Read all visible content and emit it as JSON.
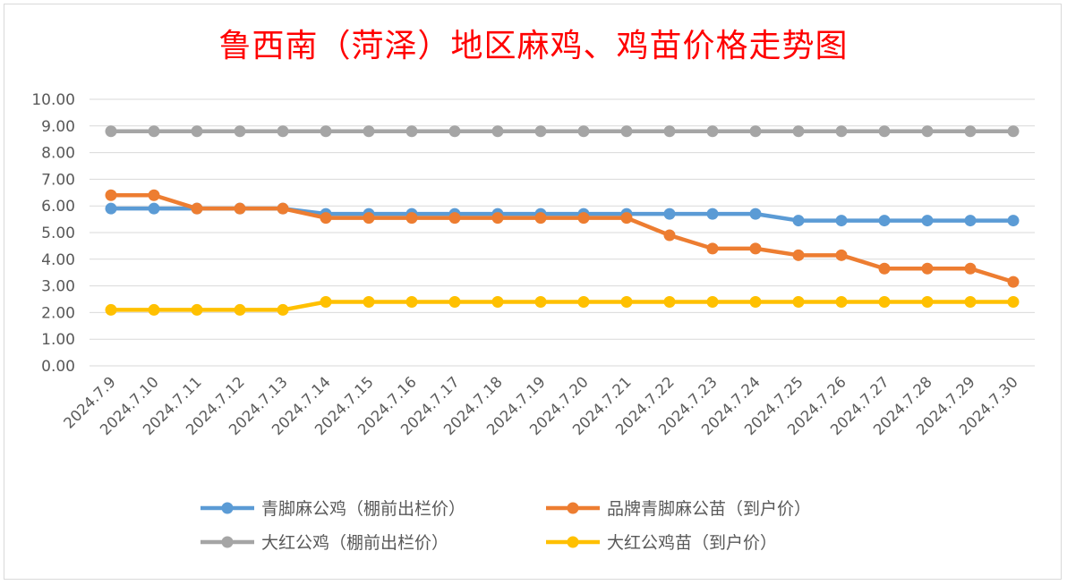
{
  "chart_data": {
    "type": "line",
    "title": "鲁西南（菏泽）地区麻鸡、鸡苗价格走势图",
    "categories": [
      "2024.7.9",
      "2024.7.10",
      "2024.7.11",
      "2024.7.12",
      "2024.7.13",
      "2024.7.14",
      "2024.7.15",
      "2024.7.16",
      "2024.7.17",
      "2024.7.18",
      "2024.7.19",
      "2024.7.20",
      "2024.7.21",
      "2024.7.22",
      "2024.7.23",
      "2024.7.24",
      "2024.7.25",
      "2024.7.26",
      "2024.7.27",
      "2024.7.28",
      "2024.7.29",
      "2024.7.30"
    ],
    "yticks": [
      "0.00",
      "1.00",
      "2.00",
      "3.00",
      "4.00",
      "5.00",
      "6.00",
      "7.00",
      "8.00",
      "9.00",
      "10.00"
    ],
    "ylim": [
      0,
      10
    ],
    "grid": true,
    "legend_position": "bottom",
    "series": [
      {
        "name": "青脚麻公鸡（棚前出栏价）",
        "color": "#5b9bd5",
        "values": [
          5.9,
          5.9,
          5.9,
          5.9,
          5.9,
          5.7,
          5.7,
          5.7,
          5.7,
          5.7,
          5.7,
          5.7,
          5.7,
          5.7,
          5.7,
          5.7,
          5.45,
          5.45,
          5.45,
          5.45,
          5.45,
          5.45
        ]
      },
      {
        "name": "品牌青脚麻公苗（到户价）",
        "color": "#ed7d31",
        "values": [
          6.4,
          6.4,
          5.9,
          5.9,
          5.9,
          5.55,
          5.55,
          5.55,
          5.55,
          5.55,
          5.55,
          5.55,
          5.55,
          4.9,
          4.4,
          4.4,
          4.15,
          4.15,
          3.65,
          3.65,
          3.65,
          3.15
        ]
      },
      {
        "name": "大红公鸡（棚前出栏价）",
        "color": "#a5a5a5",
        "values": [
          8.8,
          8.8,
          8.8,
          8.8,
          8.8,
          8.8,
          8.8,
          8.8,
          8.8,
          8.8,
          8.8,
          8.8,
          8.8,
          8.8,
          8.8,
          8.8,
          8.8,
          8.8,
          8.8,
          8.8,
          8.8,
          8.8
        ]
      },
      {
        "name": "大红公鸡苗（到户价）",
        "color": "#ffc000",
        "values": [
          2.1,
          2.1,
          2.1,
          2.1,
          2.1,
          2.4,
          2.4,
          2.4,
          2.4,
          2.4,
          2.4,
          2.4,
          2.4,
          2.4,
          2.4,
          2.4,
          2.4,
          2.4,
          2.4,
          2.4,
          2.4,
          2.4
        ]
      }
    ]
  }
}
